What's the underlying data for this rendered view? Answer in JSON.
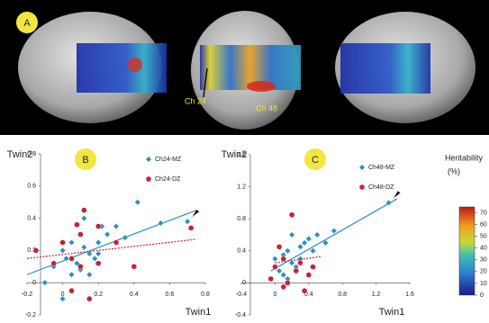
{
  "panel_a": {
    "label": "A",
    "annotations": [
      "Ch 24",
      "Ch 48"
    ]
  },
  "colorbar": {
    "title": "Heritability",
    "unit": "(%)",
    "lim": [
      0,
      75
    ],
    "ticks": [
      0,
      10,
      20,
      30,
      40,
      50,
      60,
      70
    ]
  },
  "chart_data": [
    {
      "type": "scatter",
      "label": "B",
      "xlabel": "Twin1",
      "ylabel": "Twin2",
      "xlim": [
        -0.2,
        0.8
      ],
      "ylim": [
        -0.2,
        0.8
      ],
      "xticks": [
        -0.2,
        0,
        0.2,
        0.4,
        0.6,
        0.8
      ],
      "yticks": [
        -0.2,
        0,
        0.2,
        0.4,
        0.6,
        0.8
      ],
      "series": [
        {
          "name": "Ch24-MZ",
          "color": "#2a8fc4",
          "marker": "diamond",
          "x": [
            0.0,
            0.05,
            0.1,
            0.12,
            0.15,
            0.2,
            0.22,
            0.25,
            0.08,
            0.05,
            0.1,
            0.3,
            0.42,
            0.35,
            0.18,
            0.02,
            -0.05,
            0.12,
            0.7,
            0.15,
            -0.1,
            0.2,
            0.55,
            0.0
          ],
          "values": [
            0.2,
            0.25,
            0.3,
            0.22,
            0.18,
            0.25,
            0.35,
            0.3,
            0.12,
            0.05,
            0.08,
            0.35,
            0.5,
            0.28,
            0.15,
            0.15,
            0.1,
            0.4,
            0.38,
            0.05,
            0.0,
            0.18,
            0.37,
            -0.1
          ],
          "fit": {
            "x": [
              -0.2,
              0.75
            ],
            "y": [
              0.05,
              0.45
            ]
          }
        },
        {
          "name": "Ch24-DZ",
          "color": "#c8203a",
          "marker": "circle",
          "x": [
            -0.15,
            0.0,
            0.05,
            0.1,
            0.12,
            0.2,
            0.3,
            0.1,
            0.05,
            0.15,
            0.4,
            0.72,
            -0.05,
            0.2,
            0.08
          ],
          "values": [
            0.2,
            0.25,
            0.15,
            0.1,
            0.45,
            0.35,
            0.25,
            0.3,
            -0.05,
            -0.1,
            0.1,
            0.34,
            0.12,
            0.12,
            0.36
          ],
          "fit": {
            "x": [
              -0.2,
              0.75
            ],
            "y": [
              0.15,
              0.27
            ]
          }
        }
      ]
    },
    {
      "type": "scatter",
      "label": "C",
      "xlabel": "Twin1",
      "ylabel": "Twin2",
      "xlim": [
        -0.4,
        1.6
      ],
      "ylim": [
        -0.4,
        1.6
      ],
      "xticks": [
        -0.4,
        0,
        0.4,
        0.8,
        1.2,
        1.6
      ],
      "yticks": [
        -0.4,
        0,
        0.4,
        0.8,
        1.2,
        1.6
      ],
      "series": [
        {
          "name": "Ch48-MZ",
          "color": "#2a8fc4",
          "marker": "diamond",
          "x": [
            0.0,
            0.1,
            0.15,
            0.2,
            0.3,
            0.35,
            0.4,
            0.5,
            0.6,
            0.05,
            0.1,
            0.25,
            0.45,
            0.7,
            1.35,
            0.2,
            0.15,
            0.3
          ],
          "values": [
            0.3,
            0.35,
            0.4,
            0.25,
            0.45,
            0.5,
            0.55,
            0.6,
            0.5,
            0.15,
            0.1,
            0.2,
            0.4,
            0.65,
            1.0,
            0.6,
            0.05,
            0.3
          ],
          "fit": {
            "x": [
              -0.05,
              1.45
            ],
            "y": [
              0.15,
              1.05
            ]
          }
        },
        {
          "name": "Ch48-DZ",
          "color": "#c8203a",
          "marker": "circle",
          "x": [
            0.0,
            0.05,
            0.1,
            0.2,
            0.3,
            0.15,
            0.35,
            0.4,
            0.45,
            -0.05,
            0.25,
            0.1
          ],
          "values": [
            0.2,
            0.45,
            0.3,
            0.85,
            0.25,
            0.0,
            -0.1,
            0.1,
            0.2,
            0.05,
            0.15,
            -0.05
          ],
          "fit": {
            "x": [
              0.0,
              0.55
            ],
            "y": [
              0.25,
              0.33
            ]
          }
        }
      ]
    }
  ]
}
